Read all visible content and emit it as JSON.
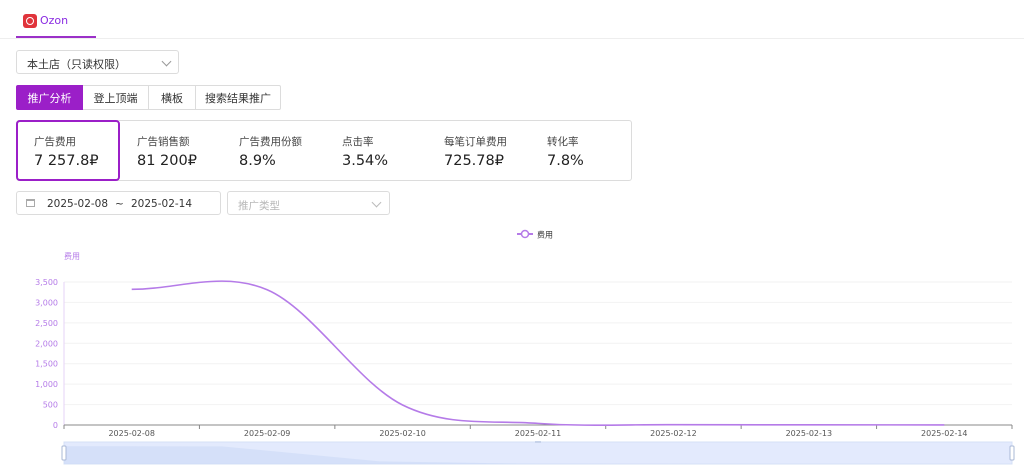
{
  "top_tab": {
    "label": "Ozon",
    "icon": "ozon-logo-icon"
  },
  "store_select": {
    "value": "本土店（只读权限）"
  },
  "tabs": [
    {
      "label": "推广分析",
      "active": true
    },
    {
      "label": "登上顶端",
      "active": false
    },
    {
      "label": "横板",
      "active": false
    },
    {
      "label": "搜索结果推广",
      "active": false
    }
  ],
  "metrics": [
    {
      "label": "广告费用",
      "value": "7 257.8₽",
      "active": true
    },
    {
      "label": "广告销售额",
      "value": "81 200₽",
      "active": false
    },
    {
      "label": "广告费用份额",
      "value": "8.9%",
      "active": false
    },
    {
      "label": "点击率",
      "value": "3.54%",
      "active": false
    },
    {
      "label": "每笔订单费用",
      "value": "725.78₽",
      "active": false
    },
    {
      "label": "转化率",
      "value": "7.8%",
      "active": false
    }
  ],
  "date_range": {
    "start": "2025-02-08",
    "separator": "~",
    "end": "2025-02-14"
  },
  "type_select": {
    "placeholder": "推广类型"
  },
  "colors": {
    "accent": "#9b1fc8",
    "series": "#b57be8"
  },
  "chart_data": {
    "type": "line",
    "legend": [
      "费用"
    ],
    "legend_position": "top-center",
    "ylabel": "费用",
    "ylim": [
      0,
      3500
    ],
    "yticks": [
      0,
      500,
      1000,
      1500,
      2000,
      2500,
      3000,
      3500
    ],
    "ytick_labels": [
      "0",
      "500",
      "1,000",
      "1,500",
      "2,000",
      "2,500",
      "3,000",
      "3,500"
    ],
    "categories": [
      "2025-02-08",
      "2025-02-09",
      "2025-02-10",
      "2025-02-11",
      "2025-02-12",
      "2025-02-13",
      "2025-02-14"
    ],
    "series": [
      {
        "name": "费用",
        "values": [
          3320,
          3310,
          490,
          40,
          8,
          4,
          2
        ]
      }
    ],
    "smooth": true,
    "grid": true,
    "datazoom_slider": true
  }
}
